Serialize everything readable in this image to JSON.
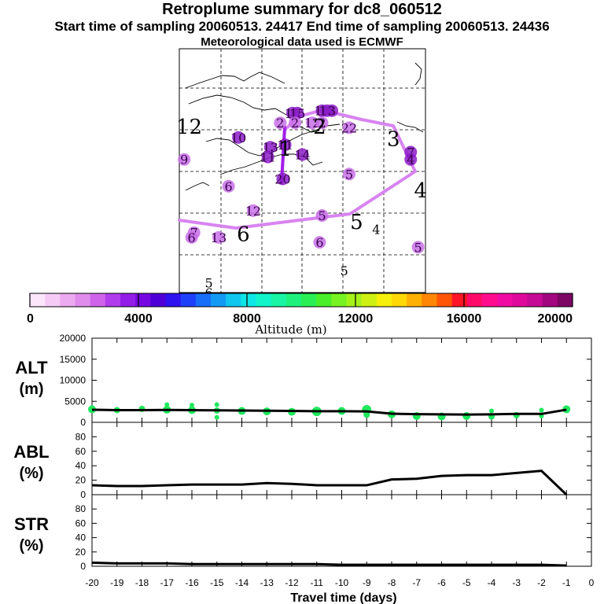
{
  "header": {
    "title": "Retroplume summary for dc8_060512",
    "sampling_line": "Start time of sampling 20060513. 24417      End time of sampling 20060513. 24436",
    "met_line": "Meteorological data used is ECMWF"
  },
  "map": {
    "labels": [
      {
        "text": "12",
        "kind": "time",
        "lon": 0.04,
        "lat": 0.32
      },
      {
        "text": "9",
        "kind": "cluster",
        "lon": 0.02,
        "lat": 0.47,
        "color": "#c870e8"
      },
      {
        "text": "10",
        "kind": "cluster",
        "lon": 0.24,
        "lat": 0.38,
        "color": "#8c1cc8"
      },
      {
        "text": "2",
        "kind": "cluster",
        "lon": 0.41,
        "lat": 0.32,
        "color": "#c870e8"
      },
      {
        "text": "16",
        "kind": "cluster",
        "lon": 0.46,
        "lat": 0.28,
        "color": "#8c1cc8"
      },
      {
        "text": "15",
        "kind": "cluster",
        "lon": 0.48,
        "lat": 0.28,
        "color": "#8c1cc8"
      },
      {
        "text": "2",
        "kind": "cluster",
        "lon": 0.47,
        "lat": 0.32,
        "color": "#c870e8"
      },
      {
        "text": "12",
        "kind": "cluster",
        "lon": 0.54,
        "lat": 0.32,
        "color": "#c870e8"
      },
      {
        "text": "16",
        "kind": "cluster",
        "lon": 0.58,
        "lat": 0.27,
        "color": "#8c1cc8"
      },
      {
        "text": "13",
        "kind": "cluster",
        "lon": 0.6,
        "lat": 0.27,
        "color": "#8c1cc8"
      },
      {
        "text": "3",
        "kind": "cluster",
        "lon": 0.62,
        "lat": 0.27,
        "color": "#8c1cc8"
      },
      {
        "text": "2",
        "kind": "cluster",
        "lon": 0.58,
        "lat": 0.32,
        "color": "#c870e8"
      },
      {
        "text": "22",
        "kind": "cluster",
        "lon": 0.69,
        "lat": 0.34,
        "color": "#c870e8"
      },
      {
        "text": "13",
        "kind": "cluster",
        "lon": 0.37,
        "lat": 0.42,
        "color": "#8c1cc8"
      },
      {
        "text": "11",
        "kind": "cluster",
        "lon": 0.43,
        "lat": 0.41,
        "color": "#8c1cc8"
      },
      {
        "text": "11",
        "kind": "cluster",
        "lon": 0.36,
        "lat": 0.46,
        "color": "#8c1cc8"
      },
      {
        "text": "14",
        "kind": "cluster",
        "lon": 0.5,
        "lat": 0.45,
        "color": "#8c1cc8"
      },
      {
        "text": "20",
        "kind": "cluster",
        "lon": 0.42,
        "lat": 0.55,
        "color": "#8c1cc8"
      },
      {
        "text": "6",
        "kind": "cluster",
        "lon": 0.2,
        "lat": 0.58,
        "color": "#c870e8"
      },
      {
        "text": "5",
        "kind": "cluster",
        "lon": 0.69,
        "lat": 0.53,
        "color": "#c870e8"
      },
      {
        "text": "12",
        "kind": "cluster",
        "lon": 0.3,
        "lat": 0.68,
        "color": "#c870e8"
      },
      {
        "text": "5",
        "kind": "cluster",
        "lon": 0.58,
        "lat": 0.7,
        "color": "#c870e8"
      },
      {
        "text": "7",
        "kind": "cluster",
        "lon": 0.06,
        "lat": 0.77,
        "color": "#c870e8"
      },
      {
        "text": "6",
        "kind": "cluster",
        "lon": 0.05,
        "lat": 0.79,
        "color": "#c870e8"
      },
      {
        "text": "13",
        "kind": "cluster",
        "lon": 0.16,
        "lat": 0.79,
        "color": "#c870e8"
      },
      {
        "text": "6",
        "kind": "cluster",
        "lon": 0.57,
        "lat": 0.81,
        "color": "#c870e8"
      },
      {
        "text": "5",
        "kind": "cluster",
        "lon": 0.97,
        "lat": 0.83,
        "color": "#c870e8"
      },
      {
        "text": "7",
        "kind": "cluster",
        "lon": 0.94,
        "lat": 0.44,
        "color": "#8c1cc8"
      },
      {
        "text": "4",
        "kind": "cluster",
        "lon": 0.94,
        "lat": 0.47,
        "color": "#8c1cc8"
      },
      {
        "text": "1",
        "kind": "time",
        "lon": 0.43,
        "lat": 0.41
      },
      {
        "text": "2",
        "kind": "time",
        "lon": 0.57,
        "lat": 0.32
      },
      {
        "text": "3",
        "kind": "time",
        "lon": 0.87,
        "lat": 0.37
      },
      {
        "text": "4",
        "kind": "time",
        "lon": 0.98,
        "lat": 0.58
      },
      {
        "text": "5",
        "kind": "time",
        "lon": 0.72,
        "lat": 0.71
      },
      {
        "text": "4",
        "kind": "time2",
        "lon": 0.8,
        "lat": 0.74
      },
      {
        "text": "6",
        "kind": "time",
        "lon": 0.26,
        "lat": 0.76
      },
      {
        "text": "5",
        "kind": "time2",
        "lon": 0.67,
        "lat": 0.91
      },
      {
        "text": "5",
        "kind": "time2",
        "lon": 0.12,
        "lat": 0.96
      },
      {
        "text": "6",
        "kind": "time2",
        "lon": 0.12,
        "lat": 1.0
      }
    ]
  },
  "colorbar": {
    "ticks": [
      "0",
      "4000",
      "8000",
      "12000",
      "16000",
      "20000"
    ],
    "label": "Altitude (m)",
    "colors": [
      "#fbe6fb",
      "#f5cbf6",
      "#ecaaf1",
      "#e08cec",
      "#cf64ea",
      "#b13ced",
      "#921ee8",
      "#7609e2",
      "#4f00d8",
      "#2e12f0",
      "#1f40fa",
      "#176ef8",
      "#139af5",
      "#11c6ef",
      "#0de7e5",
      "#12f5cb",
      "#19f5a4",
      "#1ef27d",
      "#29ef55",
      "#49ef2a",
      "#77f222",
      "#a5f21b",
      "#cff013",
      "#f6f00a",
      "#ffd806",
      "#ffb005",
      "#ff8606",
      "#ff5506",
      "#ff1525",
      "#ff0a6a",
      "#ff0b8e",
      "#f10ba2",
      "#df0a9b",
      "#c50a95",
      "#a2077f",
      "#7d0564"
    ]
  },
  "chart_data": [
    {
      "type": "scatter",
      "name": "ALT",
      "ylabel": "ALT\n(m)",
      "ylim": [
        0,
        20000
      ],
      "yticks": [
        0,
        5000,
        10000,
        15000,
        20000
      ],
      "line_color": "#000000",
      "point_color": "#1ee85c",
      "line": {
        "x": [
          -20,
          -19,
          -18,
          -17,
          -16,
          -15,
          -14,
          -13,
          -12,
          -11,
          -10,
          -9,
          -8,
          -7,
          -6,
          -5,
          -4,
          -3,
          -2,
          -1
        ],
        "y": [
          3000,
          2900,
          2900,
          2950,
          2900,
          2850,
          2800,
          2750,
          2700,
          2650,
          2650,
          2600,
          2050,
          1950,
          1900,
          1850,
          1900,
          2000,
          2000,
          3000
        ]
      },
      "points": [
        {
          "x": -20,
          "y": 3100,
          "r": 5
        },
        {
          "x": -19,
          "y": 2900,
          "r": 4
        },
        {
          "x": -18,
          "y": 3200,
          "r": 4
        },
        {
          "x": -17,
          "y": 3000,
          "r": 5
        },
        {
          "x": -17,
          "y": 4200,
          "r": 3
        },
        {
          "x": -16,
          "y": 2900,
          "r": 5
        },
        {
          "x": -16,
          "y": 4100,
          "r": 3
        },
        {
          "x": -15,
          "y": 1200,
          "r": 3
        },
        {
          "x": -15,
          "y": 2800,
          "r": 4
        },
        {
          "x": -15,
          "y": 4200,
          "r": 3
        },
        {
          "x": -14,
          "y": 2700,
          "r": 5
        },
        {
          "x": -13,
          "y": 2600,
          "r": 5
        },
        {
          "x": -12,
          "y": 2500,
          "r": 5
        },
        {
          "x": -11,
          "y": 2600,
          "r": 6
        },
        {
          "x": -10,
          "y": 2700,
          "r": 5
        },
        {
          "x": -9,
          "y": 3000,
          "r": 6
        },
        {
          "x": -9,
          "y": 1800,
          "r": 4
        },
        {
          "x": -8,
          "y": 1900,
          "r": 5
        },
        {
          "x": -7,
          "y": 1500,
          "r": 5
        },
        {
          "x": -6,
          "y": 1400,
          "r": 5
        },
        {
          "x": -5,
          "y": 1500,
          "r": 5
        },
        {
          "x": -4,
          "y": 1400,
          "r": 4
        },
        {
          "x": -4,
          "y": 2700,
          "r": 3
        },
        {
          "x": -3,
          "y": 1700,
          "r": 4
        },
        {
          "x": -2,
          "y": 1500,
          "r": 3
        },
        {
          "x": -2,
          "y": 2900,
          "r": 3
        },
        {
          "x": -1,
          "y": 3100,
          "r": 5
        }
      ]
    },
    {
      "type": "line",
      "name": "ABL",
      "ylabel": "ABL\n(%)",
      "ylim": [
        0,
        100
      ],
      "yticks": [
        0,
        20,
        40,
        60,
        80
      ],
      "x": [
        -20,
        -19,
        -18,
        -17,
        -16,
        -15,
        -14,
        -13,
        -12,
        -11,
        -10,
        -9,
        -8,
        -7,
        -6,
        -5,
        -4,
        -3,
        -2,
        -1
      ],
      "y": [
        13,
        12,
        12,
        13,
        14,
        14,
        14,
        16,
        15,
        13,
        13,
        13,
        21,
        22,
        26,
        27,
        27,
        30,
        33,
        0
      ]
    },
    {
      "type": "line",
      "name": "STR",
      "ylabel": "STR\n(%)",
      "ylim": [
        0,
        100
      ],
      "yticks": [
        0,
        20,
        40,
        60,
        80
      ],
      "x": [
        -20,
        -19,
        -18,
        -17,
        -16,
        -15,
        -14,
        -13,
        -12,
        -11,
        -10,
        -9,
        -8,
        -7,
        -6,
        -5,
        -4,
        -3,
        -2,
        -1
      ],
      "y": [
        5,
        4,
        4,
        4,
        3,
        3,
        3,
        3,
        3,
        3,
        2,
        2,
        2,
        2,
        2,
        2,
        2,
        2,
        2,
        1
      ]
    }
  ],
  "xaxis": {
    "ticks": [
      "-20",
      "-19",
      "-18",
      "-17",
      "-16",
      "-15",
      "-14",
      "-13",
      "-12",
      "-11",
      "-10",
      "-9",
      "-8",
      "-7",
      "-6",
      "-5",
      "-4",
      "-3",
      "-2",
      "-1",
      "0"
    ],
    "label": "Travel time (days)",
    "xlim": [
      -20,
      0
    ]
  }
}
